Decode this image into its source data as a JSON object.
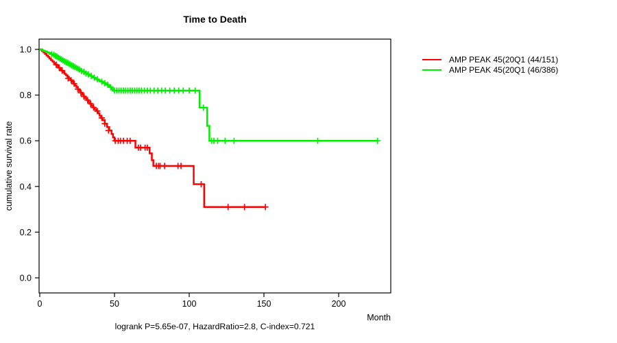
{
  "page": {
    "background": "#ffffff",
    "frame_color": "#000000"
  },
  "chart_data": {
    "type": "line",
    "subtype": "kaplan-meier-step-curves",
    "title": "Time to Death",
    "xlabel": "Month",
    "ylabel": "cumulative survival rate",
    "annotation": "logrank P=5.65e-07, HazardRatio=2.8, C-index=0.721",
    "x_ticks": [
      0,
      50,
      100,
      150,
      200
    ],
    "y_ticks": [
      {
        "label": "1.0",
        "value": 1.0
      },
      {
        "label": "0.8",
        "value": 0.8
      },
      {
        "label": "0.6",
        "value": 0.6
      },
      {
        "label": "0.4",
        "value": 0.4
      },
      {
        "label": "0.2",
        "value": 0.2
      },
      {
        "label": "0.0",
        "value": 0.0
      }
    ],
    "xlim": [
      0,
      235
    ],
    "ylim": [
      0,
      1
    ],
    "grid": false,
    "legend_position": "right-outside",
    "series": [
      {
        "name": "AMP PEAK 45(20Q1 (44/151)",
        "color": "#ff0000",
        "events": "44/151",
        "end_month": 151,
        "steps": [
          [
            0,
            1.0
          ],
          [
            1.5,
            0.993
          ],
          [
            2.5,
            0.987
          ],
          [
            3.5,
            0.98
          ],
          [
            4.5,
            0.973
          ],
          [
            5.5,
            0.967
          ],
          [
            6.5,
            0.96
          ],
          [
            7.5,
            0.953
          ],
          [
            8.5,
            0.947
          ],
          [
            9.5,
            0.94
          ],
          [
            10.5,
            0.933
          ],
          [
            11.5,
            0.927
          ],
          [
            12.5,
            0.92
          ],
          [
            13.5,
            0.913
          ],
          [
            14.5,
            0.907
          ],
          [
            15.5,
            0.9
          ],
          [
            16.5,
            0.893
          ],
          [
            17.5,
            0.887
          ],
          [
            18.5,
            0.88
          ],
          [
            19.5,
            0.873
          ],
          [
            20.5,
            0.865
          ],
          [
            21.5,
            0.858
          ],
          [
            22.5,
            0.85
          ],
          [
            23.5,
            0.842
          ],
          [
            24.5,
            0.834
          ],
          [
            25.5,
            0.826
          ],
          [
            26.5,
            0.818
          ],
          [
            27.5,
            0.81
          ],
          [
            28.5,
            0.802
          ],
          [
            29.5,
            0.794
          ],
          [
            30.5,
            0.786
          ],
          [
            31.5,
            0.778
          ],
          [
            32.5,
            0.77
          ],
          [
            33.5,
            0.762
          ],
          [
            34.5,
            0.754
          ],
          [
            35.5,
            0.746
          ],
          [
            36.5,
            0.738
          ],
          [
            38,
            0.73
          ],
          [
            39,
            0.72
          ],
          [
            40,
            0.71
          ],
          [
            41,
            0.7
          ],
          [
            42,
            0.69
          ],
          [
            43.5,
            0.675
          ],
          [
            45,
            0.66
          ],
          [
            46.5,
            0.645
          ],
          [
            48,
            0.63
          ],
          [
            49,
            0.615
          ],
          [
            50,
            0.6
          ],
          [
            64,
            0.57
          ],
          [
            73.5,
            0.545
          ],
          [
            75,
            0.515
          ],
          [
            76,
            0.49
          ],
          [
            103,
            0.41
          ],
          [
            110,
            0.31
          ]
        ],
        "censors": [
          [
            11,
            0.933
          ],
          [
            13,
            0.92
          ],
          [
            15,
            0.907
          ],
          [
            19,
            0.873
          ],
          [
            21,
            0.865
          ],
          [
            23,
            0.85
          ],
          [
            25.5,
            0.826
          ],
          [
            27.5,
            0.81
          ],
          [
            29.5,
            0.794
          ],
          [
            32,
            0.778
          ],
          [
            34,
            0.762
          ],
          [
            36,
            0.746
          ],
          [
            38.5,
            0.73
          ],
          [
            41.5,
            0.7
          ],
          [
            43.5,
            0.675
          ],
          [
            46,
            0.645
          ],
          [
            50.5,
            0.6
          ],
          [
            52.5,
            0.6
          ],
          [
            54,
            0.6
          ],
          [
            56,
            0.6
          ],
          [
            58.5,
            0.6
          ],
          [
            60.5,
            0.6
          ],
          [
            66,
            0.57
          ],
          [
            67.5,
            0.57
          ],
          [
            70.5,
            0.57
          ],
          [
            72,
            0.57
          ],
          [
            78,
            0.49
          ],
          [
            79.5,
            0.49
          ],
          [
            80.5,
            0.49
          ],
          [
            83.5,
            0.49
          ],
          [
            92.5,
            0.49
          ],
          [
            94.5,
            0.49
          ],
          [
            108,
            0.41
          ],
          [
            126,
            0.31
          ],
          [
            137,
            0.31
          ],
          [
            151,
            0.31
          ]
        ]
      },
      {
        "name": "AMP PEAK 45(20Q1 (46/386)",
        "color": "#00ee00",
        "events": "46/386",
        "end_month": 226,
        "steps": [
          [
            0,
            1.0
          ],
          [
            1,
            0.997
          ],
          [
            2,
            0.995
          ],
          [
            3,
            0.992
          ],
          [
            4,
            0.99
          ],
          [
            5,
            0.987
          ],
          [
            6,
            0.985
          ],
          [
            7,
            0.982
          ],
          [
            8,
            0.979
          ],
          [
            9,
            0.976
          ],
          [
            10,
            0.972
          ],
          [
            11,
            0.968
          ],
          [
            12,
            0.964
          ],
          [
            13,
            0.96
          ],
          [
            14,
            0.956
          ],
          [
            15,
            0.952
          ],
          [
            16,
            0.948
          ],
          [
            17,
            0.944
          ],
          [
            18,
            0.941
          ],
          [
            19,
            0.938
          ],
          [
            20,
            0.934
          ],
          [
            21,
            0.93
          ],
          [
            22,
            0.926
          ],
          [
            23,
            0.923
          ],
          [
            24,
            0.919
          ],
          [
            25,
            0.916
          ],
          [
            26,
            0.912
          ],
          [
            27,
            0.909
          ],
          [
            28,
            0.905
          ],
          [
            29,
            0.902
          ],
          [
            30,
            0.898
          ],
          [
            31,
            0.894
          ],
          [
            32,
            0.891
          ],
          [
            33,
            0.887
          ],
          [
            34,
            0.884
          ],
          [
            35,
            0.88
          ],
          [
            36,
            0.876
          ],
          [
            37,
            0.873
          ],
          [
            38,
            0.869
          ],
          [
            39,
            0.866
          ],
          [
            40,
            0.862
          ],
          [
            41,
            0.859
          ],
          [
            42,
            0.855
          ],
          [
            43,
            0.852
          ],
          [
            44,
            0.848
          ],
          [
            45,
            0.845
          ],
          [
            46,
            0.839
          ],
          [
            47,
            0.834
          ],
          [
            48,
            0.827
          ],
          [
            49,
            0.82
          ],
          [
            107,
            0.745
          ],
          [
            112,
            0.665
          ],
          [
            113.5,
            0.6
          ]
        ],
        "censors": [
          [
            8,
            0.979
          ],
          [
            9.5,
            0.976
          ],
          [
            10.5,
            0.972
          ],
          [
            11.5,
            0.968
          ],
          [
            12.5,
            0.964
          ],
          [
            13.5,
            0.96
          ],
          [
            14.5,
            0.956
          ],
          [
            15.5,
            0.952
          ],
          [
            16.5,
            0.948
          ],
          [
            17.5,
            0.944
          ],
          [
            18.5,
            0.941
          ],
          [
            19.5,
            0.938
          ],
          [
            20.5,
            0.934
          ],
          [
            21.5,
            0.93
          ],
          [
            22.5,
            0.926
          ],
          [
            23.5,
            0.923
          ],
          [
            24.5,
            0.919
          ],
          [
            25.5,
            0.916
          ],
          [
            26.5,
            0.912
          ],
          [
            28,
            0.905
          ],
          [
            29.5,
            0.902
          ],
          [
            31,
            0.894
          ],
          [
            32.5,
            0.891
          ],
          [
            34.5,
            0.884
          ],
          [
            36.5,
            0.876
          ],
          [
            38.5,
            0.869
          ],
          [
            41.5,
            0.859
          ],
          [
            43.5,
            0.852
          ],
          [
            45.5,
            0.845
          ],
          [
            47.5,
            0.834
          ],
          [
            50,
            0.82
          ],
          [
            51.5,
            0.82
          ],
          [
            53,
            0.82
          ],
          [
            54.5,
            0.82
          ],
          [
            56,
            0.82
          ],
          [
            57.5,
            0.82
          ],
          [
            59,
            0.82
          ],
          [
            60.5,
            0.82
          ],
          [
            62,
            0.82
          ],
          [
            63.5,
            0.82
          ],
          [
            65,
            0.82
          ],
          [
            66.5,
            0.82
          ],
          [
            68,
            0.82
          ],
          [
            70,
            0.82
          ],
          [
            72,
            0.82
          ],
          [
            74,
            0.82
          ],
          [
            76.5,
            0.82
          ],
          [
            79,
            0.82
          ],
          [
            81.5,
            0.82
          ],
          [
            84,
            0.82
          ],
          [
            87,
            0.82
          ],
          [
            90,
            0.82
          ],
          [
            93,
            0.82
          ],
          [
            96,
            0.82
          ],
          [
            100,
            0.82
          ],
          [
            104,
            0.82
          ],
          [
            109.5,
            0.745
          ],
          [
            115,
            0.6
          ],
          [
            116.5,
            0.6
          ],
          [
            119,
            0.6
          ],
          [
            124,
            0.6
          ],
          [
            130,
            0.6
          ],
          [
            186,
            0.6
          ],
          [
            226,
            0.6
          ]
        ]
      }
    ]
  }
}
